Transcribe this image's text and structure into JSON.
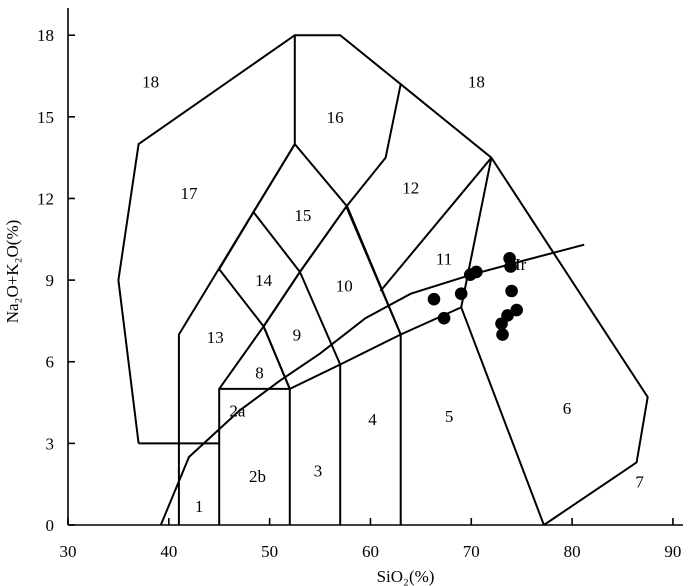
{
  "chart_data": {
    "type": "scatter",
    "title": "",
    "xlabel": "SiO₂(%)",
    "ylabel": "Na₂O+K₂O(%)",
    "xlim": [
      30,
      91
    ],
    "ylim": [
      0,
      19
    ],
    "xticks": [
      30,
      40,
      50,
      60,
      70,
      80,
      90
    ],
    "yticks": [
      0,
      3,
      6,
      9,
      12,
      15,
      18
    ],
    "grid": false,
    "points": [
      {
        "x": 73.8,
        "y": 9.8
      },
      {
        "x": 73.9,
        "y": 9.5
      },
      {
        "x": 70.5,
        "y": 9.3
      },
      {
        "x": 69.9,
        "y": 9.2
      },
      {
        "x": 66.3,
        "y": 8.3
      },
      {
        "x": 69.0,
        "y": 8.5
      },
      {
        "x": 67.3,
        "y": 7.6
      },
      {
        "x": 74.0,
        "y": 8.6
      },
      {
        "x": 74.5,
        "y": 7.9
      },
      {
        "x": 73.6,
        "y": 7.7
      },
      {
        "x": 73.0,
        "y": 7.4
      },
      {
        "x": 73.1,
        "y": 7.0
      }
    ],
    "point_annotation": {
      "text": "Ir",
      "x": 74.9,
      "y": 9.6
    },
    "field_boundaries": [
      [
        [
          37,
          3
        ],
        [
          35,
          9
        ],
        [
          37,
          14
        ],
        [
          52.5,
          18
        ],
        [
          57,
          18
        ],
        [
          63,
          16.2
        ],
        [
          72,
          13.5
        ],
        [
          87.5,
          4.7
        ],
        [
          86.4,
          2.3
        ],
        [
          77.2,
          0
        ]
      ],
      [
        [
          37,
          3
        ],
        [
          45,
          3
        ]
      ],
      [
        [
          45,
          0
        ],
        [
          45,
          5
        ],
        [
          52,
          5
        ],
        [
          57,
          5.9
        ],
        [
          63,
          7
        ],
        [
          69,
          8
        ],
        [
          77.2,
          0
        ]
      ],
      [
        [
          41,
          0
        ],
        [
          41,
          7
        ],
        [
          52.5,
          14
        ],
        [
          57.7,
          11.7
        ],
        [
          63,
          7
        ]
      ],
      [
        [
          45,
          5
        ],
        [
          49.4,
          7.3
        ],
        [
          53,
          9.3
        ],
        [
          57.6,
          11.7
        ],
        [
          61.5,
          13.5
        ],
        [
          63,
          16.2
        ]
      ],
      [
        [
          52,
          0
        ],
        [
          52,
          5
        ],
        [
          49.4,
          7.3
        ],
        [
          45,
          9.4
        ],
        [
          48.4,
          11.5
        ],
        [
          52.5,
          14
        ],
        [
          52.5,
          18
        ]
      ],
      [
        [
          57,
          0
        ],
        [
          57,
          5.9
        ],
        [
          53,
          9.3
        ],
        [
          48.4,
          11.5
        ]
      ],
      [
        [
          63,
          0
        ],
        [
          63,
          7
        ],
        [
          57.6,
          11.7
        ],
        [
          53,
          9.3
        ],
        [
          49.4,
          7.3
        ],
        [
          52,
          5
        ]
      ],
      [
        [
          69,
          8
        ],
        [
          72,
          13.5
        ]
      ],
      [
        [
          61,
          8.6
        ],
        [
          72,
          13.5
        ]
      ],
      [
        [
          39.2,
          0
        ],
        [
          42,
          2.5
        ],
        [
          47,
          4.2
        ],
        [
          51,
          5.3
        ],
        [
          55,
          6.3
        ],
        [
          59.5,
          7.6
        ],
        [
          64,
          8.5
        ],
        [
          70,
          9.2
        ],
        [
          75,
          9.7
        ],
        [
          81.2,
          10.3
        ]
      ]
    ],
    "field_labels": [
      {
        "text": "1",
        "x": 43.0,
        "y": 0.7
      },
      {
        "text": "2a",
        "x": 46.8,
        "y": 4.2
      },
      {
        "text": "2b",
        "x": 48.8,
        "y": 1.8
      },
      {
        "text": "3",
        "x": 54.8,
        "y": 2.0
      },
      {
        "text": "4",
        "x": 60.2,
        "y": 3.9
      },
      {
        "text": "5",
        "x": 67.8,
        "y": 4.0
      },
      {
        "text": "6",
        "x": 79.5,
        "y": 4.3
      },
      {
        "text": "7",
        "x": 86.7,
        "y": 1.6
      },
      {
        "text": "8",
        "x": 49.0,
        "y": 5.6
      },
      {
        "text": "9",
        "x": 52.7,
        "y": 7.0
      },
      {
        "text": "10",
        "x": 57.4,
        "y": 8.8
      },
      {
        "text": "11",
        "x": 67.3,
        "y": 9.8
      },
      {
        "text": "12",
        "x": 64.0,
        "y": 12.4
      },
      {
        "text": "13",
        "x": 44.6,
        "y": 6.9
      },
      {
        "text": "14",
        "x": 49.4,
        "y": 9.0
      },
      {
        "text": "15",
        "x": 53.3,
        "y": 11.4
      },
      {
        "text": "16",
        "x": 56.5,
        "y": 15.0
      },
      {
        "text": "17",
        "x": 42.0,
        "y": 12.2
      },
      {
        "text": "18",
        "x": 38.2,
        "y": 16.3
      },
      {
        "text": "18",
        "x": 70.5,
        "y": 16.3
      }
    ]
  }
}
